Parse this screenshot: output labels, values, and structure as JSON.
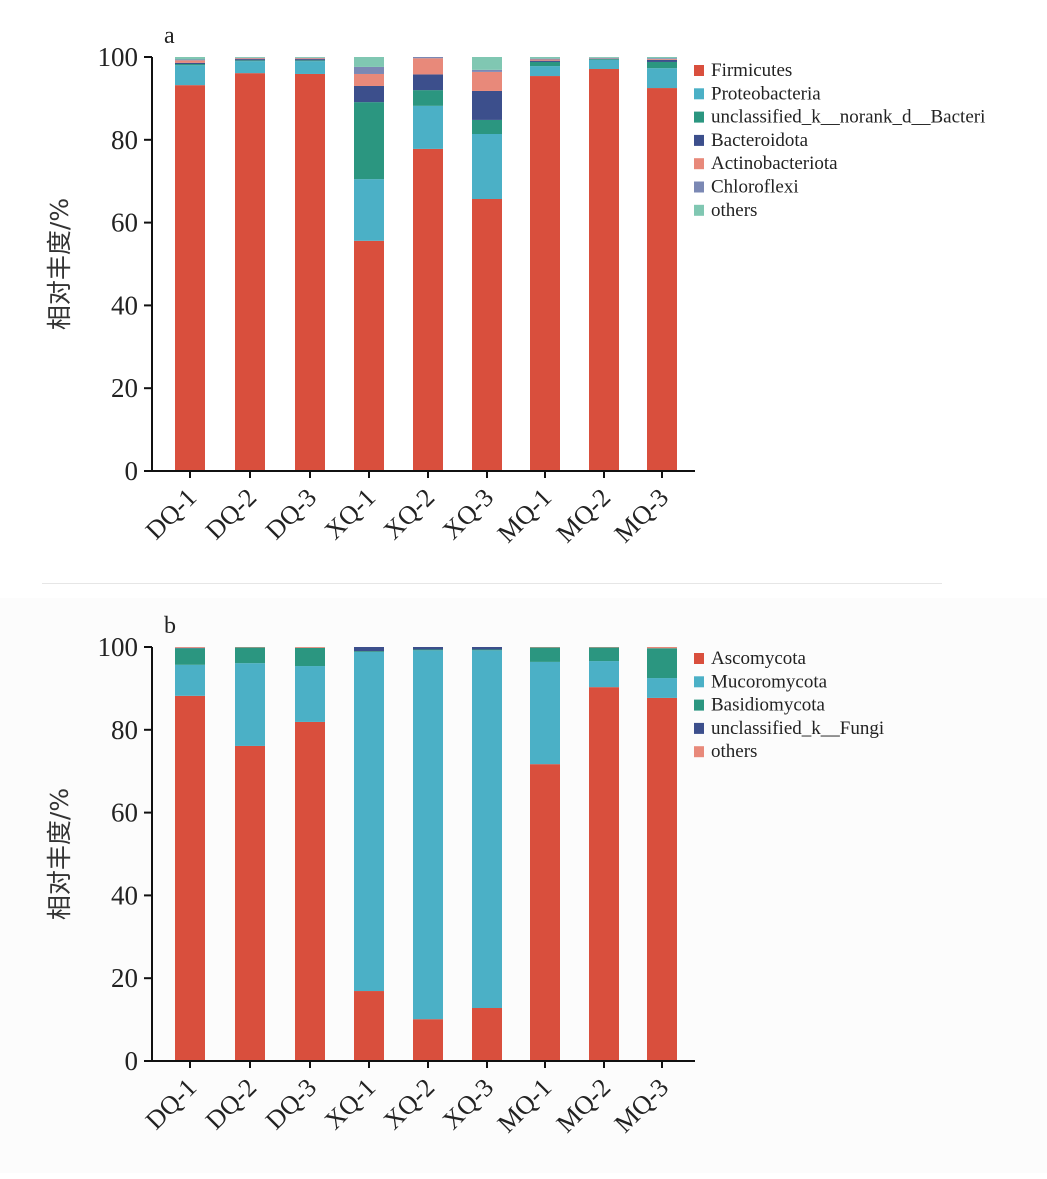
{
  "chart_data": [
    {
      "type": "bar",
      "stacked": true,
      "panel_label": "a",
      "title": "",
      "xlabel": "",
      "ylabel": "相对丰度/%",
      "ylim": [
        0,
        100
      ],
      "yticks": [
        0,
        20,
        40,
        60,
        80,
        100
      ],
      "grid": false,
      "legend_position": "right",
      "categories": [
        "DQ-1",
        "DQ-2",
        "DQ-3",
        "XQ-1",
        "XQ-2",
        "XQ-3",
        "MQ-1",
        "MQ-2",
        "MQ-3"
      ],
      "series": [
        {
          "name": "Firmicutes",
          "color": "#d94f3d",
          "values": [
            93.2,
            96.1,
            95.9,
            55.6,
            77.8,
            65.7,
            95.4,
            97.1,
            92.5
          ]
        },
        {
          "name": "Proteobacteria",
          "color": "#4bb0c6",
          "values": [
            4.8,
            2.9,
            3.1,
            14.9,
            10.4,
            15.7,
            2.4,
            2.2,
            4.8
          ]
        },
        {
          "name": "unclassified_k__norank_d__Bacteri",
          "color": "#2b9680",
          "values": [
            0.3,
            0.2,
            0.2,
            18.6,
            3.8,
            3.4,
            1.0,
            0.2,
            1.5
          ]
        },
        {
          "name": "Bacteroidota",
          "color": "#3c4f8c",
          "values": [
            0.3,
            0.3,
            0.3,
            3.9,
            3.8,
            7.0,
            0.3,
            0.1,
            0.5
          ]
        },
        {
          "name": "Actinobacteriota",
          "color": "#e8897a",
          "values": [
            0.6,
            0.2,
            0.2,
            2.9,
            3.9,
            4.6,
            0.3,
            0.1,
            0.2
          ]
        },
        {
          "name": "Chloroflexi",
          "color": "#7b88b4",
          "values": [
            0.2,
            0.1,
            0.1,
            1.7,
            0.8,
            0.5,
            0.2,
            0.1,
            0.2
          ]
        },
        {
          "name": "others",
          "color": "#80c7b2",
          "values": [
            0.6,
            0.2,
            0.2,
            2.4,
            1.2,
            3.1,
            0.4,
            0.2,
            0.3
          ]
        }
      ]
    },
    {
      "type": "bar",
      "stacked": true,
      "panel_label": "b",
      "title": "",
      "xlabel": "",
      "ylabel": "相对丰度/%",
      "ylim": [
        0,
        100
      ],
      "yticks": [
        0,
        20,
        40,
        60,
        80,
        100
      ],
      "grid": false,
      "legend_position": "right",
      "categories": [
        "DQ-1",
        "DQ-2",
        "DQ-3",
        "XQ-1",
        "XQ-2",
        "XQ-3",
        "MQ-1",
        "MQ-2",
        "MQ-3"
      ],
      "series": [
        {
          "name": "Ascomycota",
          "color": "#d94f3d",
          "values": [
            88.2,
            76.1,
            81.9,
            16.9,
            10.1,
            12.8,
            71.7,
            90.3,
            87.7
          ]
        },
        {
          "name": "Mucoromycota",
          "color": "#4bb0c6",
          "values": [
            7.5,
            20.0,
            13.5,
            81.9,
            89.1,
            86.4,
            24.7,
            6.3,
            4.8
          ]
        },
        {
          "name": "Basidiomycota",
          "color": "#2b9680",
          "values": [
            4.0,
            3.8,
            4.4,
            0.2,
            0.2,
            0.2,
            3.5,
            3.3,
            7.2
          ]
        },
        {
          "name": "unclassified_k__Fungi",
          "color": "#3c4f8c",
          "values": [
            0.1,
            0.0,
            0.0,
            1.0,
            0.6,
            0.6,
            0.0,
            0.0,
            0.0
          ]
        },
        {
          "name": "others",
          "color": "#e8897a",
          "values": [
            0.2,
            0.1,
            0.2,
            0.0,
            0.0,
            0.0,
            0.1,
            0.1,
            0.3
          ]
        }
      ]
    }
  ]
}
